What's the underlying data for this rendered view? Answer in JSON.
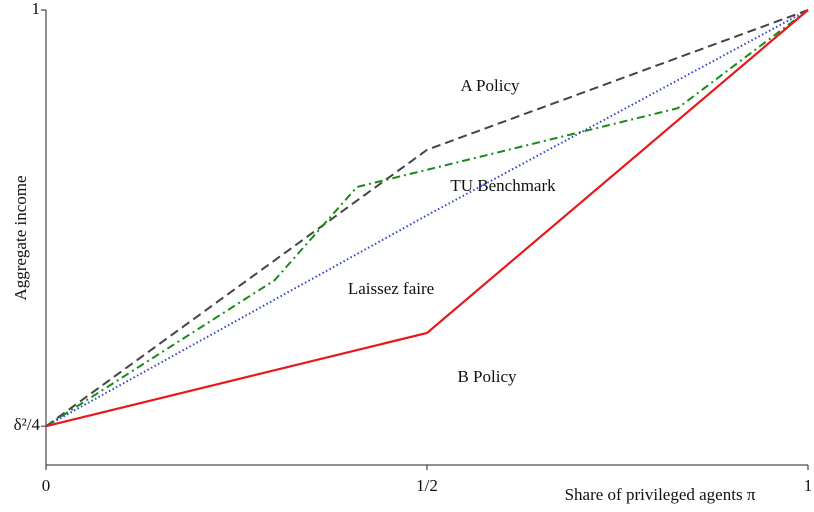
{
  "chart_data": {
    "type": "line",
    "xlabel": "Share of privileged agents π",
    "ylabel": "Aggregate income",
    "xlim": [
      0,
      1
    ],
    "ylim": [
      0.18,
      1
    ],
    "xticks": [
      0,
      {
        "value": 0.5,
        "label": "1/2"
      },
      1
    ],
    "yticks": [
      {
        "value": 0.25,
        "label": "δ²/4"
      },
      1
    ],
    "series": [
      {
        "name": "A Policy",
        "color": "#444444",
        "style": "dashed",
        "x": [
          0,
          0.5,
          1
        ],
        "values": [
          0.25,
          0.748,
          1
        ]
      },
      {
        "name": "TU Benchmark",
        "color": "#1a8a1a",
        "style": "dashdot",
        "x": [
          0,
          0.3,
          0.408,
          0.829,
          1
        ],
        "values": [
          0.25,
          0.513,
          0.681,
          0.823,
          1
        ]
      },
      {
        "name": "Laissez faire",
        "color": "#3344cc",
        "style": "dotted",
        "x": [
          0,
          0.5,
          1
        ],
        "values": [
          0.25,
          0.63,
          1
        ]
      },
      {
        "name": "B Policy",
        "color": "#e8191c",
        "style": "solid",
        "x": [
          0,
          0.5,
          1
        ],
        "values": [
          0.25,
          0.418,
          1
        ]
      }
    ]
  }
}
